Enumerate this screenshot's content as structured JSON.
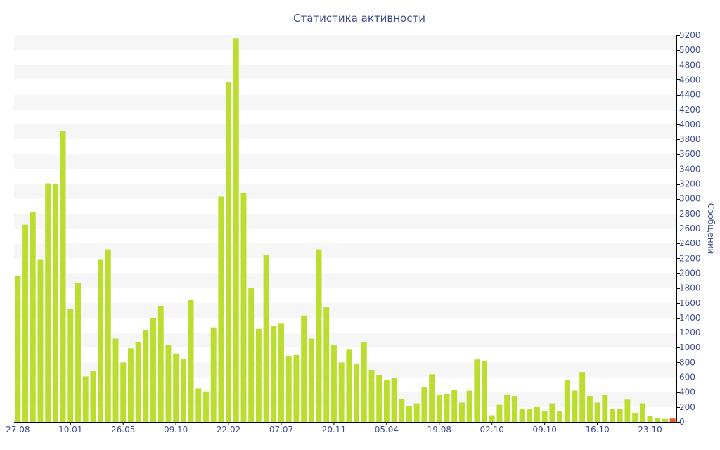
{
  "colors": {
    "bar": "#bbdd2f",
    "bar_last": "#e85a2a",
    "text": "#3e4e8c",
    "band": "#f6f6f6",
    "axis": "#000000"
  },
  "chart_data": {
    "type": "bar",
    "title": "Статистика активности",
    "xlabel": "",
    "ylabel": "Сообщений",
    "ylim": [
      0,
      5200
    ],
    "y_ticks": [
      0,
      200,
      400,
      600,
      800,
      1000,
      1200,
      1400,
      1600,
      1800,
      2000,
      2200,
      2400,
      2600,
      2800,
      3000,
      3200,
      3400,
      3600,
      3800,
      4000,
      4200,
      4400,
      4600,
      4800,
      5000,
      5200
    ],
    "y_axis_position": "right",
    "grid": "alternating horizontal bands",
    "x_tick_labels": [
      {
        "index": 0,
        "label": "27.08"
      },
      {
        "index": 7,
        "label": "10.01"
      },
      {
        "index": 14,
        "label": "26.05"
      },
      {
        "index": 21,
        "label": "09.10"
      },
      {
        "index": 28,
        "label": "22.02"
      },
      {
        "index": 35,
        "label": "07.07"
      },
      {
        "index": 42,
        "label": "20.11"
      },
      {
        "index": 49,
        "label": "05.04"
      },
      {
        "index": 56,
        "label": "19.08"
      },
      {
        "index": 63,
        "label": "02.10"
      },
      {
        "index": 70,
        "label": "09.10"
      },
      {
        "index": 77,
        "label": "16.10"
      },
      {
        "index": 84,
        "label": "23.10"
      }
    ],
    "values": [
      1960,
      2650,
      2820,
      2180,
      3210,
      3200,
      3910,
      1520,
      1870,
      610,
      690,
      2180,
      2320,
      1120,
      800,
      990,
      1070,
      1240,
      1400,
      1560,
      1040,
      920,
      850,
      1640,
      450,
      410,
      1270,
      3030,
      4570,
      5160,
      3080,
      1800,
      1250,
      2250,
      1290,
      1320,
      880,
      900,
      1430,
      1120,
      2320,
      1540,
      1030,
      800,
      970,
      780,
      1070,
      700,
      630,
      560,
      590,
      310,
      210,
      250,
      470,
      640,
      360,
      370,
      430,
      260,
      420,
      840,
      820,
      90,
      230,
      360,
      350,
      180,
      170,
      200,
      150,
      250,
      150,
      560,
      420,
      670,
      350,
      260,
      360,
      180,
      170,
      300,
      120,
      250,
      80,
      50,
      40,
      45
    ]
  }
}
